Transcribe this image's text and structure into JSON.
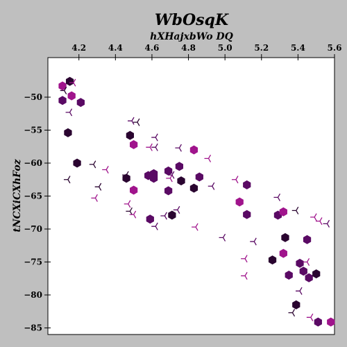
{
  "chart_data": {
    "type": "scatter",
    "title": "WbOsqK",
    "subtitle": "hXHajxbWo DQ",
    "xlabel": "",
    "ylabel": "tNCXiCXhFoz",
    "xlim": [
      4.03,
      5.6
    ],
    "ylim": [
      -86.0,
      -44.0
    ],
    "x_ticks": [
      4.2,
      4.4,
      4.6,
      4.8,
      5.0,
      5.2,
      5.4,
      5.6
    ],
    "x_tick_labels": [
      "4.2",
      "4.4",
      "4.6",
      "4.8",
      "5.0",
      "5.2",
      "5.4",
      "5.6"
    ],
    "y_ticks": [
      -50,
      -55,
      -60,
      -65,
      -70,
      -75,
      -80,
      -85
    ],
    "y_tick_labels": [
      "−50",
      "−55",
      "−60",
      "−65",
      "−70",
      "−75",
      "−80",
      "−85"
    ],
    "x_axis_position": "top",
    "grid": false,
    "series": [
      {
        "marker": "hexagon",
        "colors": {
          "magenta": "#a0148c",
          "purple": "#5a0a64",
          "dark": "#2a0430"
        },
        "points": [
          {
            "x": 4.11,
            "y": -48.3,
            "c": "magenta"
          },
          {
            "x": 4.15,
            "y": -47.6,
            "c": "dark"
          },
          {
            "x": 4.16,
            "y": -49.8,
            "c": "magenta"
          },
          {
            "x": 4.11,
            "y": -50.5,
            "c": "purple"
          },
          {
            "x": 4.21,
            "y": -50.8,
            "c": "purple"
          },
          {
            "x": 4.14,
            "y": -55.4,
            "c": "dark"
          },
          {
            "x": 4.48,
            "y": -55.8,
            "c": "dark"
          },
          {
            "x": 4.5,
            "y": -57.2,
            "c": "magenta"
          },
          {
            "x": 4.19,
            "y": -60.0,
            "c": "dark"
          },
          {
            "x": 4.46,
            "y": -62.3,
            "c": "dark"
          },
          {
            "x": 4.58,
            "y": -61.9,
            "c": "purple"
          },
          {
            "x": 4.61,
            "y": -61.6,
            "c": "purple"
          },
          {
            "x": 4.61,
            "y": -62.3,
            "c": "purple"
          },
          {
            "x": 4.69,
            "y": -61.2,
            "c": "purple"
          },
          {
            "x": 4.75,
            "y": -60.5,
            "c": "purple"
          },
          {
            "x": 4.83,
            "y": -58.0,
            "c": "magenta"
          },
          {
            "x": 4.76,
            "y": -62.7,
            "c": "dark"
          },
          {
            "x": 4.86,
            "y": -62.1,
            "c": "purple"
          },
          {
            "x": 4.5,
            "y": -64.1,
            "c": "magenta"
          },
          {
            "x": 4.69,
            "y": -64.2,
            "c": "purple"
          },
          {
            "x": 4.83,
            "y": -63.8,
            "c": "dark"
          },
          {
            "x": 4.59,
            "y": -68.5,
            "c": "purple"
          },
          {
            "x": 4.71,
            "y": -67.9,
            "c": "dark"
          },
          {
            "x": 5.12,
            "y": -63.3,
            "c": "purple"
          },
          {
            "x": 5.08,
            "y": -65.9,
            "c": "magenta"
          },
          {
            "x": 5.12,
            "y": -67.8,
            "c": "purple"
          },
          {
            "x": 5.29,
            "y": -67.9,
            "c": "purple"
          },
          {
            "x": 5.32,
            "y": -67.4,
            "c": "magenta"
          },
          {
            "x": 5.33,
            "y": -71.3,
            "c": "dark"
          },
          {
            "x": 5.45,
            "y": -71.6,
            "c": "purple"
          },
          {
            "x": 5.32,
            "y": -73.7,
            "c": "magenta"
          },
          {
            "x": 5.26,
            "y": -74.7,
            "c": "dark"
          },
          {
            "x": 5.41,
            "y": -75.2,
            "c": "purple"
          },
          {
            "x": 5.43,
            "y": -76.4,
            "c": "purple"
          },
          {
            "x": 5.35,
            "y": -77.0,
            "c": "purple"
          },
          {
            "x": 5.46,
            "y": -77.4,
            "c": "purple"
          },
          {
            "x": 5.5,
            "y": -76.8,
            "c": "dark"
          },
          {
            "x": 5.39,
            "y": -81.5,
            "c": "dark"
          },
          {
            "x": 5.51,
            "y": -84.1,
            "c": "purple"
          },
          {
            "x": 5.58,
            "y": -84.1,
            "c": "magenta"
          }
        ]
      },
      {
        "marker": "tri",
        "colors": {
          "magenta": "#a0148c",
          "purple": "#5a0a64",
          "dark": "#2a0430"
        },
        "points": [
          {
            "x": 4.12,
            "y": -49.0,
            "c": "dark"
          },
          {
            "x": 4.17,
            "y": -47.8,
            "c": "magenta"
          },
          {
            "x": 4.15,
            "y": -52.3,
            "c": "purple"
          },
          {
            "x": 4.49,
            "y": -53.6,
            "c": "purple"
          },
          {
            "x": 4.52,
            "y": -53.8,
            "c": "dark"
          },
          {
            "x": 4.62,
            "y": -56.1,
            "c": "purple"
          },
          {
            "x": 4.59,
            "y": -57.6,
            "c": "magenta"
          },
          {
            "x": 4.62,
            "y": -57.6,
            "c": "purple"
          },
          {
            "x": 4.75,
            "y": -57.7,
            "c": "purple"
          },
          {
            "x": 4.91,
            "y": -59.3,
            "c": "magenta"
          },
          {
            "x": 4.28,
            "y": -60.2,
            "c": "dark"
          },
          {
            "x": 4.35,
            "y": -61.0,
            "c": "magenta"
          },
          {
            "x": 4.46,
            "y": -61.8,
            "c": "dark"
          },
          {
            "x": 4.14,
            "y": -62.5,
            "c": "dark"
          },
          {
            "x": 4.7,
            "y": -62.3,
            "c": "magenta"
          },
          {
            "x": 4.71,
            "y": -61.8,
            "c": "purple"
          },
          {
            "x": 5.06,
            "y": -62.5,
            "c": "magenta"
          },
          {
            "x": 4.31,
            "y": -63.6,
            "c": "dark"
          },
          {
            "x": 4.93,
            "y": -63.5,
            "c": "purple"
          },
          {
            "x": 4.29,
            "y": -65.3,
            "c": "magenta"
          },
          {
            "x": 5.29,
            "y": -65.2,
            "c": "purple"
          },
          {
            "x": 4.47,
            "y": -66.2,
            "c": "magenta"
          },
          {
            "x": 4.48,
            "y": -67.3,
            "c": "dark"
          },
          {
            "x": 4.5,
            "y": -67.8,
            "c": "magenta"
          },
          {
            "x": 4.74,
            "y": -67.1,
            "c": "purple"
          },
          {
            "x": 4.67,
            "y": -68.0,
            "c": "purple"
          },
          {
            "x": 5.39,
            "y": -67.2,
            "c": "dark"
          },
          {
            "x": 5.49,
            "y": -68.2,
            "c": "magenta"
          },
          {
            "x": 5.52,
            "y": -68.8,
            "c": "magenta"
          },
          {
            "x": 5.56,
            "y": -69.2,
            "c": "purple"
          },
          {
            "x": 4.62,
            "y": -69.6,
            "c": "purple"
          },
          {
            "x": 4.84,
            "y": -69.7,
            "c": "magenta"
          },
          {
            "x": 4.99,
            "y": -71.3,
            "c": "purple"
          },
          {
            "x": 5.16,
            "y": -71.9,
            "c": "purple"
          },
          {
            "x": 5.11,
            "y": -74.5,
            "c": "magenta"
          },
          {
            "x": 5.45,
            "y": -75.0,
            "c": "magenta"
          },
          {
            "x": 5.11,
            "y": -77.1,
            "c": "magenta"
          },
          {
            "x": 5.41,
            "y": -79.4,
            "c": "purple"
          },
          {
            "x": 5.37,
            "y": -82.7,
            "c": "dark"
          },
          {
            "x": 5.47,
            "y": -83.4,
            "c": "magenta"
          }
        ]
      }
    ]
  }
}
